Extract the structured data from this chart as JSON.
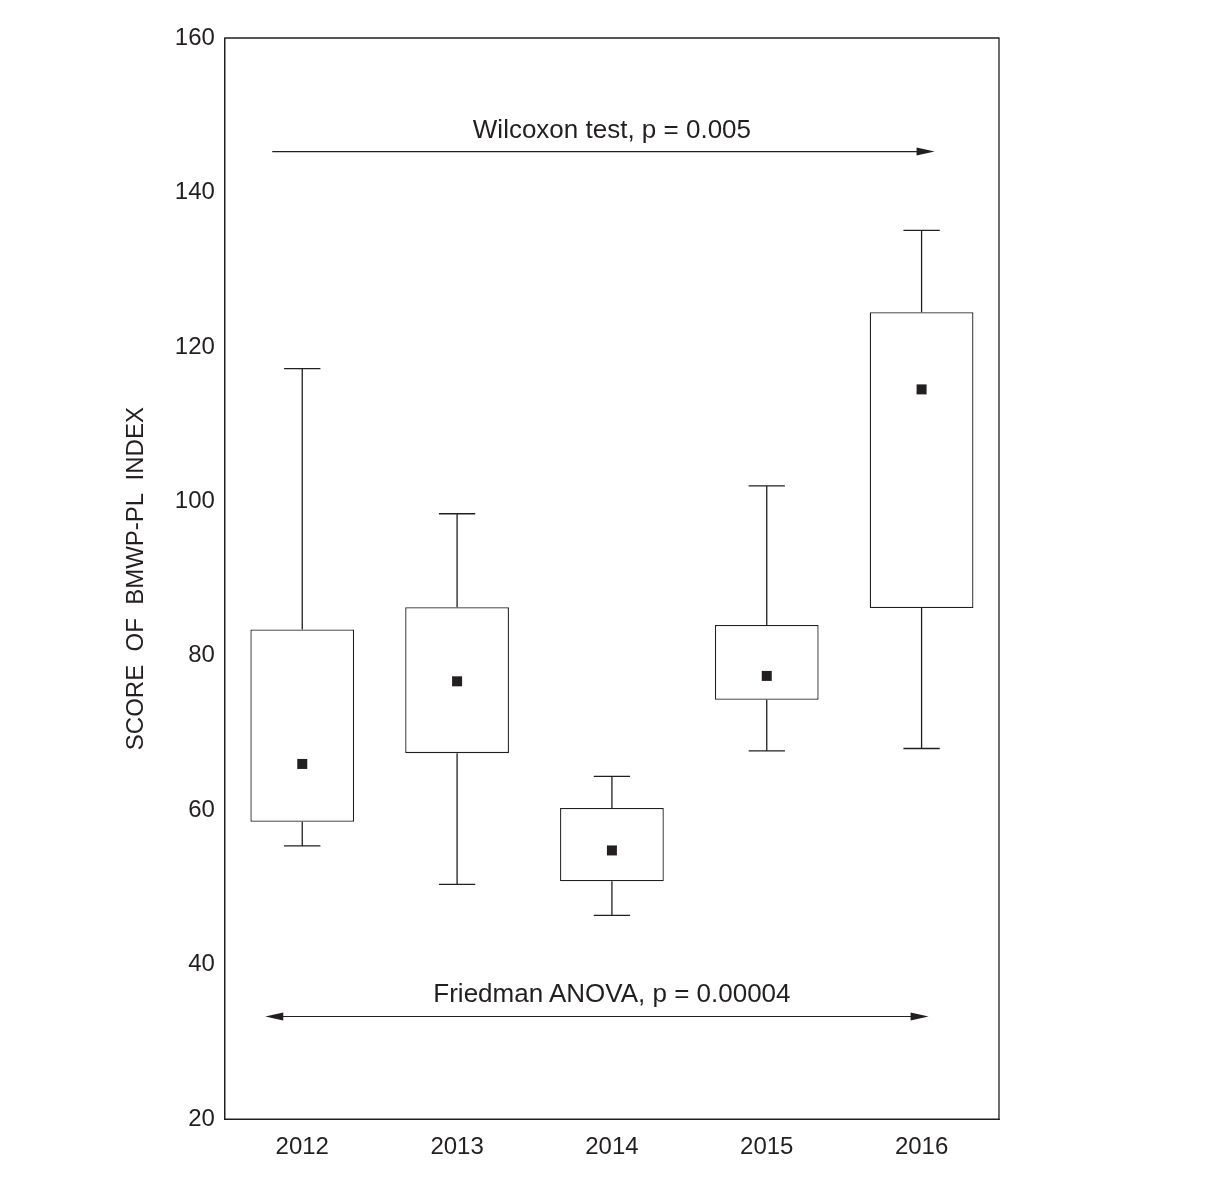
{
  "chart_data": {
    "type": "box",
    "categories": [
      "2012",
      "2013",
      "2014",
      "2015",
      "2016"
    ],
    "boxes": [
      {
        "low": 55.4,
        "q1": 58.5,
        "median": 66.0,
        "q3": 83.4,
        "high": 117.2
      },
      {
        "low": 50.4,
        "q1": 67.4,
        "median": 76.7,
        "q3": 86.3,
        "high": 98.4
      },
      {
        "low": 46.4,
        "q1": 50.8,
        "median": 54.8,
        "q3": 60.3,
        "high": 64.4
      },
      {
        "low": 67.7,
        "q1": 74.3,
        "median": 77.4,
        "q3": 84.0,
        "high": 102.0
      },
      {
        "low": 68.0,
        "q1": 86.2,
        "median": 114.5,
        "q3": 124.5,
        "high": 135.1
      }
    ],
    "ylabel": "SCORE  OF  BMWP-PL  INDEX",
    "annotations": [
      "Wilcoxon test, p = 0.005",
      "Friedman ANOVA, p = 0.00004"
    ],
    "ylim": [
      20,
      160
    ],
    "yticks": [
      20,
      40,
      60,
      80,
      100,
      120,
      140,
      160
    ],
    "grid": false,
    "marker": "square"
  }
}
